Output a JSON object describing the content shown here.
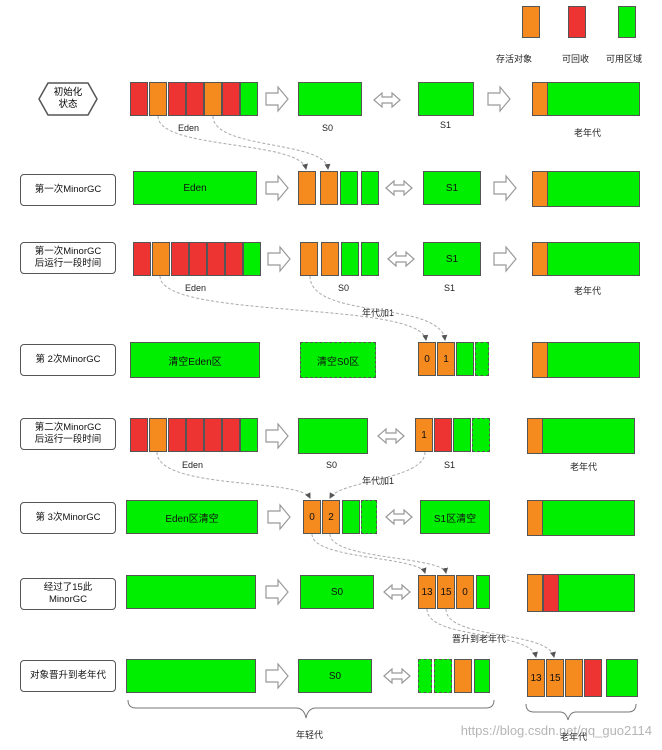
{
  "legend": {
    "survive": "存活对象",
    "recyclable": "可回收",
    "available": "可用区域"
  },
  "regions": {
    "eden": "Eden",
    "s0": "S0",
    "s1": "S1",
    "old": "老年代"
  },
  "steps": {
    "init": "初始化\n状态",
    "gc1": "第一次MinorGC",
    "gc1_after": "第一次MinorGC\n后运行一段时间",
    "gc2": "第 2次MinorGC",
    "gc2_after": "第二次MinorGC\n后运行一段时间",
    "gc3": "第 3次MinorGC",
    "gc15": "经过了15此\nMinorGC",
    "promote": "对象晋升到老年代"
  },
  "texts": {
    "clear_eden": "清空Eden区",
    "clear_s0": "清空S0区",
    "eden_cleared": "Eden区清空",
    "s1_cleared": "S1区清空",
    "age_plus_1": "年代加1",
    "promote_to_old": "晋升到老年代",
    "young_gen": "年轻代",
    "old_gen": "老年代",
    "watermark": "https://blog.csdn.net/qq_guo2114"
  },
  "ages": {
    "r4_s1": [
      "0",
      "1"
    ],
    "r5_s1": [
      "1"
    ],
    "r6_s0": [
      "0",
      "2"
    ],
    "r7_s1": [
      "13",
      "15",
      "0"
    ],
    "r8_old": [
      "13",
      "15"
    ]
  },
  "colors": {
    "green": "#00ee00",
    "red": "#ee3333",
    "orange": "#f58a1f"
  }
}
